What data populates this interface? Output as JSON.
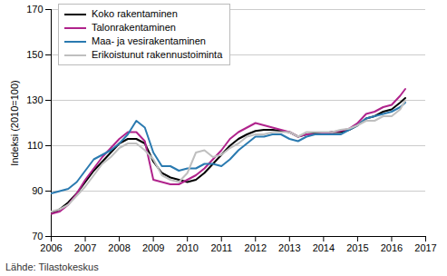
{
  "chart_data": {
    "type": "line",
    "y_label": "Indeksi (2010=100)",
    "caption": "Lähde: Tilastokeskus",
    "x": [
      2006,
      2006.25,
      2006.5,
      2006.75,
      2007,
      2007.25,
      2007.5,
      2007.75,
      2008,
      2008.25,
      2008.5,
      2008.75,
      2009,
      2009.25,
      2009.5,
      2009.75,
      2010,
      2010.25,
      2010.5,
      2010.75,
      2011,
      2011.25,
      2011.5,
      2011.75,
      2012,
      2012.25,
      2012.5,
      2012.75,
      2013,
      2013.25,
      2013.5,
      2013.75,
      2014,
      2014.25,
      2014.5,
      2014.75,
      2015,
      2015.25,
      2015.5,
      2015.75,
      2016,
      2016.25,
      2016.4
    ],
    "series": [
      {
        "name": "Koko rakentaminen",
        "color": "#000000",
        "values": [
          80,
          82,
          85,
          89,
          94,
          99,
          103,
          107,
          111,
          113,
          113,
          111,
          103,
          98,
          96,
          95,
          94,
          95,
          98,
          102,
          106,
          110,
          113,
          115,
          116.5,
          117,
          117,
          116.5,
          116,
          114,
          115,
          115.5,
          115.5,
          116,
          116,
          117,
          119,
          122,
          123,
          125,
          126,
          129,
          131
        ]
      },
      {
        "name": "Talonrakentaminen",
        "color": "#b0238c",
        "values": [
          80,
          81,
          84,
          89,
          95,
          100,
          105,
          109,
          113,
          116,
          116,
          112,
          95,
          94,
          93,
          93,
          95,
          97,
          100,
          104,
          108,
          113,
          116,
          118,
          120,
          119,
          118,
          117,
          116,
          114,
          115,
          115,
          115.5,
          116,
          116.5,
          117.5,
          120,
          124,
          125,
          127,
          128,
          132,
          135
        ]
      },
      {
        "name": "Maa- ja vesirakentaminen",
        "color": "#2a7ab0",
        "values": [
          89,
          90,
          91,
          94,
          99,
          104,
          106,
          108,
          111,
          115,
          121,
          118,
          107,
          101,
          101,
          99,
          100,
          100,
          102,
          102,
          101,
          104,
          108,
          111,
          114,
          114,
          115,
          115,
          113,
          112,
          114,
          115,
          115,
          115,
          115,
          117,
          119,
          122,
          123,
          124,
          125,
          127,
          129
        ]
      },
      {
        "name": "Erikoistunut rakennustoiminta",
        "color": "#bfbfbf",
        "values": [
          81,
          82,
          84,
          88,
          92,
          97,
          102,
          105,
          109,
          111,
          111,
          108,
          104,
          97,
          95,
          94,
          98,
          107,
          108,
          105,
          106,
          109,
          111,
          114,
          115,
          115,
          116,
          116,
          116,
          114,
          116,
          116,
          116,
          116,
          117,
          117.5,
          119,
          121,
          121,
          123,
          123,
          126,
          130
        ]
      }
    ],
    "xlim": [
      2006,
      2017
    ],
    "xticks": [
      2006,
      2007,
      2008,
      2009,
      2010,
      2011,
      2012,
      2013,
      2014,
      2015,
      2016,
      2017
    ],
    "ylim": [
      70,
      170
    ],
    "yticks": [
      70,
      90,
      110,
      130,
      150,
      170
    ],
    "grid": true,
    "legend": "top-left"
  }
}
